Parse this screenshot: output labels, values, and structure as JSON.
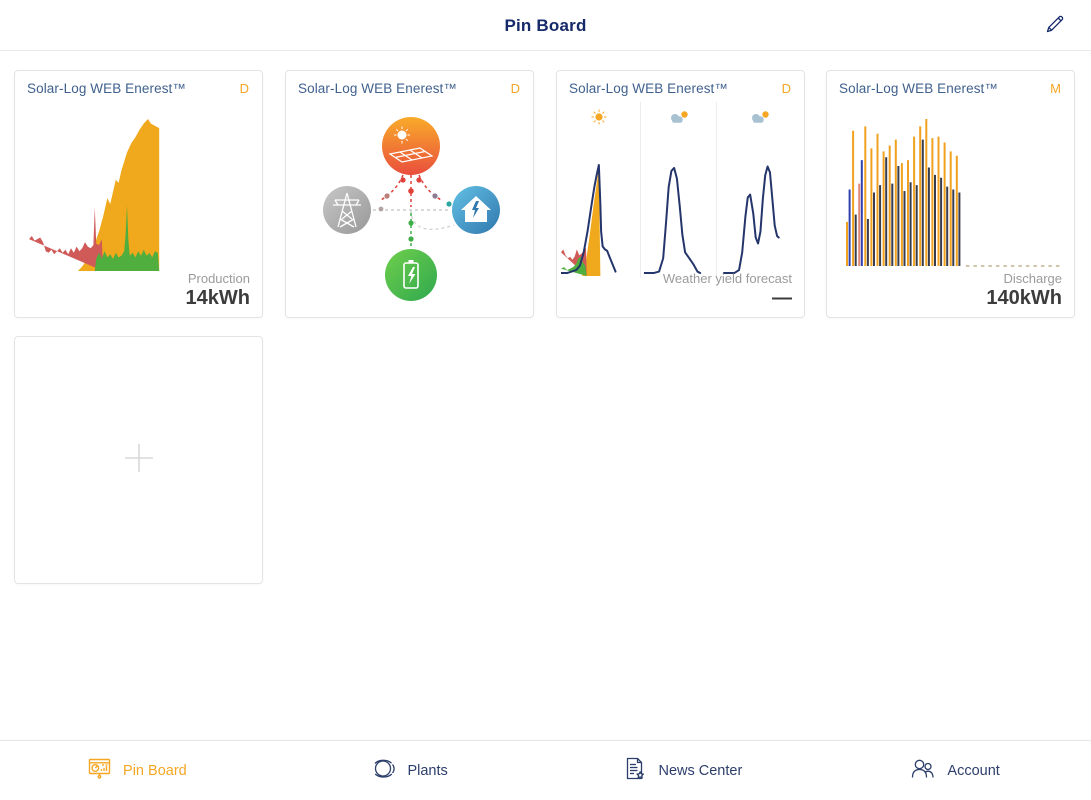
{
  "header": {
    "title": "Pin Board",
    "edit_icon": "pencil-icon"
  },
  "colors": {
    "navy_text": "#15296b",
    "card_title_blue": "#40618e",
    "accent_orange": "#f5a623",
    "label_gray": "#9b9b9b",
    "value_dark": "#3c3c3c",
    "chart_red": "#cf5a58",
    "chart_yellow": "#f0a81c",
    "chart_green": "#4fae3d",
    "chart_line_navy": "#24356b",
    "bar_dark": "#383d4d",
    "forecast_dash": "#c9bd9f"
  },
  "cards": [
    {
      "title": "Solar-Log WEB Enerest™",
      "badge": "D",
      "footer_label": "Production",
      "footer_value": "14kWh"
    },
    {
      "title": "Solar-Log WEB Enerest™",
      "badge": "D",
      "footer_label": "",
      "footer_value": ""
    },
    {
      "title": "Solar-Log WEB Enerest™",
      "badge": "D",
      "footer_label": "Weather yield forecast",
      "footer_value": "—"
    },
    {
      "title": "Solar-Log WEB Enerest™",
      "badge": "M",
      "footer_label": "Discharge",
      "footer_value": "140kWh"
    }
  ],
  "flow_diagram": {
    "nodes": [
      {
        "name": "solar-panel",
        "color_top": "#f9ab2a",
        "color_bottom": "#e94e3d"
      },
      {
        "name": "power-grid",
        "color_top": "#c6c6c6",
        "color_bottom": "#999999"
      },
      {
        "name": "house-consumption",
        "color_top": "#63c1e5",
        "color_bottom": "#3077ad"
      },
      {
        "name": "battery-storage",
        "color_top": "#6fcf4c",
        "color_bottom": "#2fa84e"
      }
    ]
  },
  "chart_data": [
    {
      "type": "area",
      "title": "Production (day)",
      "xlabel": "",
      "ylabel": "",
      "ylim": [
        0,
        100
      ],
      "note": "values are relative heights 0-100, no axes shown",
      "series": [
        {
          "name": "production",
          "color": "#f0a81c",
          "points": [
            [
              35,
              0
            ],
            [
              38,
              3
            ],
            [
              41,
              7
            ],
            [
              44,
              12
            ],
            [
              47,
              18
            ],
            [
              50,
              26
            ],
            [
              53,
              36
            ],
            [
              56,
              48
            ],
            [
              58,
              44
            ],
            [
              60,
              52
            ],
            [
              62,
              60
            ],
            [
              64,
              58
            ],
            [
              66,
              66
            ],
            [
              68,
              72
            ],
            [
              70,
              78
            ],
            [
              73,
              84
            ],
            [
              76,
              88
            ],
            [
              79,
              93
            ],
            [
              82,
              97
            ],
            [
              85,
              100
            ],
            [
              87,
              97
            ],
            [
              89,
              96
            ],
            [
              91,
              95
            ],
            [
              93,
              94
            ],
            [
              93,
              0
            ]
          ]
        },
        {
          "name": "consumption",
          "color": "#cf5a58",
          "points": [
            [
              0,
              21
            ],
            [
              2,
              23
            ],
            [
              4,
              20
            ],
            [
              6,
              21
            ],
            [
              8,
              22
            ],
            [
              10,
              19
            ],
            [
              12,
              13
            ],
            [
              14,
              12
            ],
            [
              16,
              14
            ],
            [
              18,
              11
            ],
            [
              20,
              13
            ],
            [
              22,
              15
            ],
            [
              24,
              12
            ],
            [
              26,
              14
            ],
            [
              28,
              11
            ],
            [
              30,
              15
            ],
            [
              32,
              12
            ],
            [
              34,
              16
            ],
            [
              36,
              13
            ],
            [
              38,
              15
            ],
            [
              40,
              19
            ],
            [
              42,
              16
            ],
            [
              44,
              15
            ],
            [
              46,
              17
            ],
            [
              47,
              42
            ],
            [
              48,
              18
            ],
            [
              50,
              17
            ],
            [
              52,
              21
            ],
            [
              53,
              0
            ]
          ]
        },
        {
          "name": "self-consumption",
          "color": "#4fae3d",
          "points": [
            [
              47,
              0
            ],
            [
              48,
              8
            ],
            [
              50,
              12
            ],
            [
              52,
              8
            ],
            [
              54,
              13
            ],
            [
              56,
              9
            ],
            [
              58,
              11
            ],
            [
              60,
              8
            ],
            [
              62,
              12
            ],
            [
              64,
              9
            ],
            [
              66,
              10
            ],
            [
              68,
              13
            ],
            [
              69,
              24
            ],
            [
              70,
              43
            ],
            [
              71,
              20
            ],
            [
              72,
              10
            ],
            [
              74,
              12
            ],
            [
              76,
              9
            ],
            [
              78,
              13
            ],
            [
              80,
              10
            ],
            [
              82,
              14
            ],
            [
              84,
              10
            ],
            [
              86,
              12
            ],
            [
              88,
              9
            ],
            [
              90,
              13
            ],
            [
              92,
              12
            ],
            [
              93,
              0
            ]
          ]
        }
      ]
    },
    {
      "type": "flow",
      "title": "Energy flow (day)",
      "nodes": [
        "solar",
        "grid",
        "house",
        "battery"
      ],
      "links": [
        "solar-to-grid",
        "solar-to-house",
        "solar-to-battery",
        "grid-to-house",
        "battery-to-house"
      ]
    },
    {
      "type": "line",
      "title": "Weather yield forecast (3 days)",
      "line_color": "#24356b",
      "panels": [
        {
          "icon": "sun-icon",
          "areas": [
            {
              "name": "forecast-yield",
              "color": "#f0a81c",
              "points": [
                [
                  28,
                  0
                ],
                [
                  33,
                  10
                ],
                [
                  38,
                  28
                ],
                [
                  43,
                  48
                ],
                [
                  47,
                  62
                ],
                [
                  50,
                  74
                ],
                [
                  52,
                  0
                ]
              ]
            },
            {
              "name": "consumption",
              "color": "#cf5a58",
              "points": [
                [
                  0,
                  16
                ],
                [
                  3,
                  18
                ],
                [
                  6,
                  14
                ],
                [
                  9,
                  12
                ],
                [
                  12,
                  13
                ],
                [
                  15,
                  11
                ],
                [
                  18,
                  13
                ],
                [
                  21,
                  18
                ],
                [
                  24,
                  14
                ],
                [
                  27,
                  15
                ],
                [
                  30,
                  17
                ],
                [
                  33,
                  19
                ],
                [
                  34,
                  0
                ]
              ]
            },
            {
              "name": "self-consumption",
              "color": "#4fae3d",
              "points": [
                [
                  0,
                  5
                ],
                [
                  4,
                  6
                ],
                [
                  8,
                  4
                ],
                [
                  12,
                  5
                ],
                [
                  16,
                  6
                ],
                [
                  20,
                  8
                ],
                [
                  23,
                  12
                ],
                [
                  26,
                  13
                ],
                [
                  29,
                  9
                ],
                [
                  32,
                  7
                ],
                [
                  34,
                  0
                ]
              ]
            }
          ],
          "line": [
            [
              0,
              2
            ],
            [
              8,
              2
            ],
            [
              14,
              3
            ],
            [
              20,
              4
            ],
            [
              25,
              7
            ],
            [
              30,
              16
            ],
            [
              35,
              30
            ],
            [
              40,
              47
            ],
            [
              44,
              60
            ],
            [
              47,
              68
            ],
            [
              50,
              75
            ],
            [
              52,
              48
            ],
            [
              53,
              30
            ],
            [
              55,
              20
            ],
            [
              58,
              18
            ],
            [
              61,
              17
            ],
            [
              64,
              13
            ],
            [
              68,
              8
            ],
            [
              72,
              3
            ]
          ]
        },
        {
          "icon": "partly-cloudy-icon",
          "areas": [],
          "line": [
            [
              0,
              2
            ],
            [
              14,
              2
            ],
            [
              22,
              3
            ],
            [
              28,
              12
            ],
            [
              32,
              35
            ],
            [
              36,
              60
            ],
            [
              40,
              71
            ],
            [
              44,
              73
            ],
            [
              48,
              66
            ],
            [
              52,
              48
            ],
            [
              56,
              28
            ],
            [
              60,
              16
            ],
            [
              66,
              12
            ],
            [
              72,
              8
            ],
            [
              78,
              3
            ],
            [
              82,
              2
            ]
          ]
        },
        {
          "icon": "partly-cloudy-icon",
          "areas": [],
          "line": [
            [
              5,
              2
            ],
            [
              18,
              2
            ],
            [
              24,
              4
            ],
            [
              28,
              16
            ],
            [
              32,
              40
            ],
            [
              35,
              53
            ],
            [
              38,
              55
            ],
            [
              42,
              42
            ],
            [
              45,
              26
            ],
            [
              48,
              22
            ],
            [
              51,
              30
            ],
            [
              54,
              52
            ],
            [
              57,
              68
            ],
            [
              60,
              74
            ],
            [
              63,
              70
            ],
            [
              66,
              52
            ],
            [
              69,
              34
            ],
            [
              72,
              27
            ],
            [
              74,
              26
            ]
          ]
        }
      ]
    },
    {
      "type": "bar",
      "title": "Discharge (month)",
      "xlabel": "",
      "ylabel": "",
      "ylim": [
        0,
        100
      ],
      "note": "paired thin bars per day, relative heights 0-100; dashed baseline = remaining days of month",
      "series": [
        {
          "name": "charge",
          "color": "#f0a21f",
          "values": [
            30,
            92,
            56,
            95,
            80,
            90,
            78,
            82,
            86,
            70,
            72,
            88,
            95,
            100,
            87,
            88,
            84,
            78,
            75
          ]
        },
        {
          "name": "discharge",
          "color": "#383d4d",
          "values": [
            52,
            35,
            72,
            32,
            50,
            55,
            74,
            56,
            68,
            51,
            57,
            55,
            86,
            67,
            62,
            60,
            54,
            52,
            50
          ]
        }
      ],
      "blue_navy_indices": [
        0,
        2
      ],
      "salmon_orange_indices": [
        2
      ],
      "dash_color": "#c9bd9f",
      "remaining_days_dashed": 12
    }
  ],
  "empty_card": {
    "icon": "plus-icon"
  },
  "nav": {
    "items": [
      {
        "label": "Pin Board",
        "icon": "pinboard-icon",
        "active": true
      },
      {
        "label": "Plants",
        "icon": "plants-icon",
        "active": false
      },
      {
        "label": "News Center",
        "icon": "news-icon",
        "active": false
      },
      {
        "label": "Account",
        "icon": "account-icon",
        "active": false
      }
    ]
  }
}
